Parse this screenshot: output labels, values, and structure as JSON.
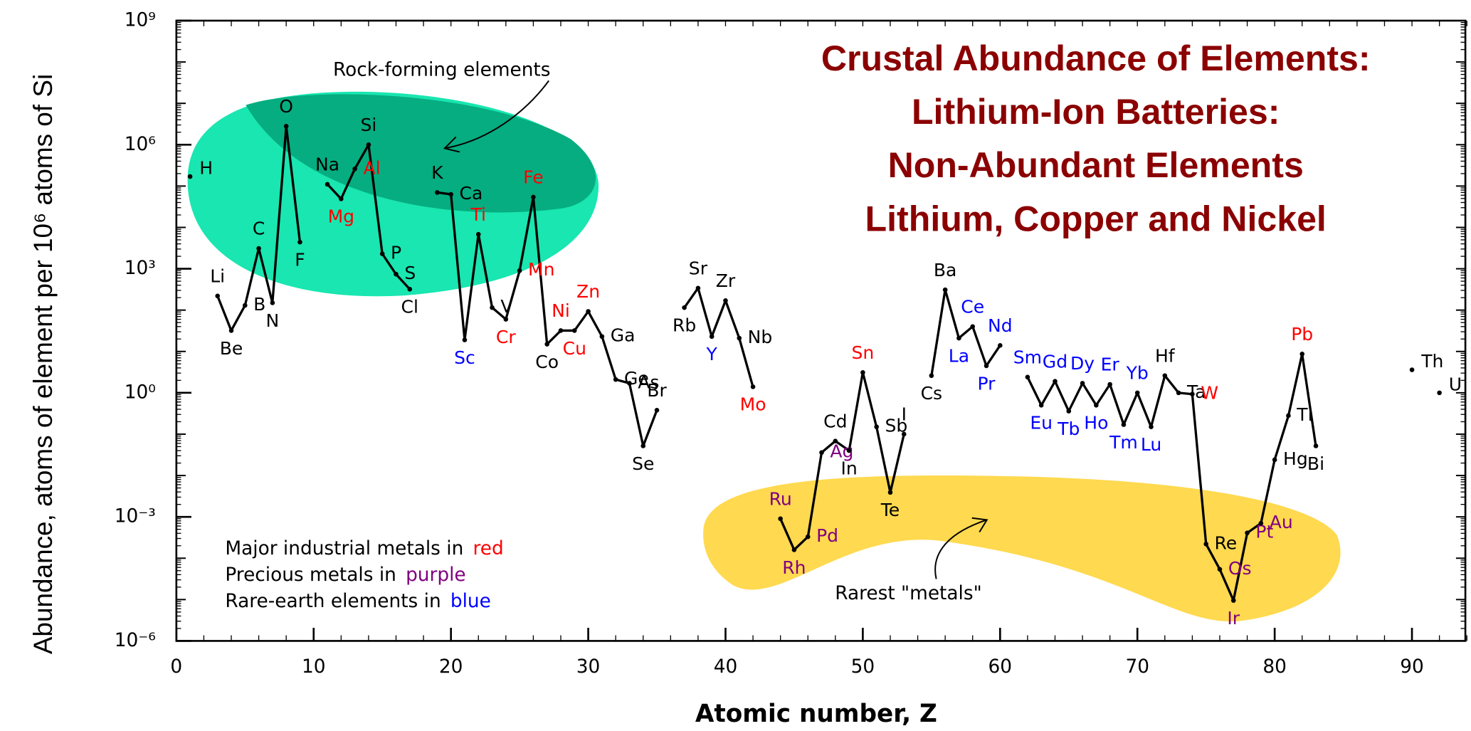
{
  "chart_data": {
    "type": "line",
    "title": [
      "Crustal Abundance of Elements:",
      "Lithium-Ion Batteries:",
      "Non-Abundant Elements",
      "Lithium, Copper and Nickel"
    ],
    "x_label": "Atomic number, Z",
    "y_label": "Abundance, atoms of element per 10⁶ atoms of Si",
    "log_y": true,
    "line_color": "#000000",
    "xlim": [
      0,
      94.3
    ],
    "xticks": [
      0,
      10,
      20,
      30,
      40,
      50,
      60,
      70,
      80,
      90
    ],
    "ylim": [
      1e-06,
      1000000000
    ],
    "yticks": [
      {
        "value": 1e-06,
        "label": "10⁻⁶"
      },
      {
        "value": 0.001,
        "label": "10⁻³"
      },
      {
        "value": 1,
        "label": "10⁰"
      },
      {
        "value": 1000,
        "label": "10³"
      },
      {
        "value": 1000000,
        "label": "10⁶"
      },
      {
        "value": 1000000000,
        "label": "10⁹"
      }
    ],
    "x": [
      1,
      2,
      3,
      4,
      5,
      6,
      7,
      8,
      9,
      10,
      11,
      12,
      13,
      14,
      15,
      16,
      17,
      18,
      19,
      20,
      21,
      22,
      23,
      24,
      25,
      26,
      27,
      28,
      29,
      30,
      31,
      32,
      33,
      34,
      35,
      36,
      37,
      38,
      39,
      40,
      41,
      42,
      43,
      44,
      45,
      46,
      47,
      48,
      49,
      50,
      51,
      52,
      53,
      54,
      55,
      56,
      57,
      58,
      59,
      60,
      61,
      62,
      63,
      64,
      65,
      66,
      67,
      68,
      69,
      70,
      71,
      72,
      73,
      74,
      75,
      76,
      77,
      78,
      79,
      80,
      81,
      82,
      83,
      84,
      90,
      91,
      92
    ],
    "values": [
      170000,
      null,
      220,
      32,
      130,
      3100,
      150,
      2800000,
      4400,
      null,
      110000,
      49000,
      260000,
      1000000,
      2300,
      740,
      320,
      null,
      70000,
      63000,
      19,
      6800,
      115,
      60,
      900,
      54000,
      15,
      32,
      32,
      93,
      23,
      2.1,
      1.7,
      0.052,
      0.38,
      null,
      115,
      340,
      23,
      170,
      21,
      1.4,
      null,
      0.0009,
      0.00016,
      0.00033,
      0.036,
      0.068,
      0.04,
      3.1,
      0.15,
      0.0039,
      0.1,
      null,
      2.6,
      310,
      21,
      40,
      4.5,
      14,
      null,
      2.4,
      0.5,
      1.9,
      0.36,
      1.7,
      0.5,
      1.6,
      0.17,
      1.0,
      0.15,
      2.6,
      1.0,
      0.93,
      0.00022,
      5.4e-05,
      9.5e-06,
      0.00041,
      0.0007,
      0.024,
      0.28,
      8.7,
      0.052,
      null,
      3.6,
      null,
      1.0
    ],
    "labels": [
      "H",
      null,
      "Li",
      "Be",
      "B",
      "C",
      "N",
      "O",
      "F",
      null,
      "Na",
      "Mg",
      "Al",
      "Si",
      "P",
      "S",
      "Cl",
      null,
      "K",
      "Ca",
      "Sc",
      "Ti",
      "V",
      "Cr",
      "Mn",
      "Fe",
      "Co",
      "Ni",
      "Cu",
      "Zn",
      "Ga",
      "Ge",
      "As",
      "Se",
      "Br",
      null,
      "Rb",
      "Sr",
      "Y",
      "Zr",
      "Nb",
      "Mo",
      null,
      "Ru",
      "Rh",
      "Pd",
      "Ag",
      "Cd",
      "In",
      "Sn",
      "Sb",
      "Te",
      "I",
      null,
      "Cs",
      "Ba",
      "La",
      "Ce",
      "Pr",
      "Nd",
      null,
      "Sm",
      "Eu",
      "Gd",
      "Tb",
      "Dy",
      "Ho",
      "Er",
      "Tm",
      "Yb",
      "Lu",
      "Hf",
      "Ta",
      "W",
      "Re",
      "Os",
      "Ir",
      "Pt",
      "Au",
      "Hg",
      "Tl",
      "Pb",
      "Bi",
      null,
      "Th",
      null,
      "U"
    ],
    "label_colors": [
      "#000000",
      null,
      "#000000",
      "#000000",
      "#000000",
      "#000000",
      "#000000",
      "#000000",
      "#000000",
      null,
      "#000000",
      "#ff0000",
      "#ff0000",
      "#000000",
      "#000000",
      "#000000",
      "#000000",
      null,
      "#000000",
      "#000000",
      "#0000ff",
      "#ff0000",
      "#000000",
      "#ff0000",
      "#ff0000",
      "#ff0000",
      "#000000",
      "#ff0000",
      "#ff0000",
      "#ff0000",
      "#000000",
      "#000000",
      "#000000",
      "#000000",
      "#000000",
      null,
      "#000000",
      "#000000",
      "#0000ff",
      "#000000",
      "#000000",
      "#ff0000",
      null,
      "#800080",
      "#800080",
      "#800080",
      "#800080",
      "#000000",
      "#000000",
      "#ff0000",
      "#000000",
      "#000000",
      "#000000",
      null,
      "#000000",
      "#000000",
      "#0000ff",
      "#0000ff",
      "#0000ff",
      "#0000ff",
      null,
      "#0000ff",
      "#0000ff",
      "#0000ff",
      "#0000ff",
      "#0000ff",
      "#0000ff",
      "#0000ff",
      "#0000ff",
      "#0000ff",
      "#0000ff",
      "#000000",
      "#000000",
      "#ff0000",
      "#000000",
      "#800080",
      "#800080",
      "#800080",
      "#800080",
      "#000000",
      "#000000",
      "#ff0000",
      "#000000",
      null,
      "#000000",
      null,
      "#000000"
    ],
    "annotations": [
      "Rock-forming elements",
      "Rarest \"metals\""
    ],
    "notes": [
      {
        "text": "Major industrial metals in",
        "highlight": "red",
        "color": "#ff0000"
      },
      {
        "text": "Precious metals in",
        "highlight": "purple",
        "color": "#800080"
      },
      {
        "text": "Rare-earth elements in",
        "highlight": "blue",
        "color": "#0000ff"
      }
    ]
  }
}
